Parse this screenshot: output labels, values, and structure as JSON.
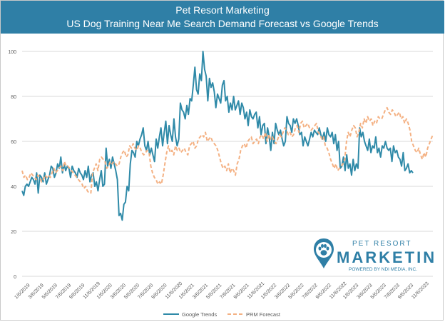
{
  "header": {
    "title": "Pet Resort Marketing",
    "subtitle": "US Dog Training Near Me Search Demand Forecast vs Google Trends"
  },
  "logo": {
    "top_text": "PET RESORT",
    "main_text": "MARKETING",
    "tagline": "POWERED BY NDI MEDIA, INC.",
    "color": "#2f7fa6"
  },
  "colors": {
    "google_trends": "#2f8aa8",
    "prm_forecast": "#f4b183",
    "header_bg": "#2f7fa6",
    "grid": "#d9d9d9"
  },
  "chart_data": {
    "type": "line",
    "title": "US Dog Training Near Me Search Demand Forecast vs Google Trends",
    "xlabel": "",
    "ylabel": "",
    "ylim": [
      0,
      100
    ],
    "yticks": [
      0,
      20,
      40,
      60,
      80,
      100
    ],
    "grid": true,
    "legend_position": "bottom",
    "x_tick_labels": [
      "1/6/2019",
      "3/6/2019",
      "5/6/2019",
      "7/6/2019",
      "9/6/2019",
      "11/6/2019",
      "1/6/2020",
      "3/6/2020",
      "5/6/2020",
      "7/6/2020",
      "9/6/2020",
      "11/6/2020",
      "1/6/2021",
      "3/6/2021",
      "5/6/2021",
      "7/6/2021",
      "9/6/2021",
      "11/6/2021",
      "1/6/2022",
      "3/6/2022",
      "5/6/2022",
      "7/6/2022",
      "9/6/2022",
      "11/6/2022",
      "1/6/2023",
      "3/6/2023",
      "5/6/2023",
      "7/6/2023",
      "9/6/2023",
      "11/6/2023"
    ],
    "series": [
      {
        "name": "Google Trends",
        "style": "solid",
        "values": [
          38,
          36,
          40,
          41,
          40,
          42,
          44,
          43,
          41,
          46,
          37,
          45,
          44,
          42,
          46,
          41,
          43,
          45,
          49,
          48,
          44,
          46,
          50,
          48,
          53,
          46,
          50,
          47,
          49,
          48,
          44,
          49,
          47,
          46,
          44,
          48,
          46,
          45,
          43,
          47,
          44,
          49,
          42,
          45,
          46,
          40,
          42,
          38,
          43,
          47,
          40,
          41,
          57,
          49,
          52,
          48,
          53,
          50,
          47,
          43,
          27,
          28,
          25,
          32,
          33,
          40,
          38,
          50,
          56,
          55,
          53,
          60,
          58,
          61,
          63,
          66,
          58,
          56,
          60,
          54,
          57,
          54,
          51,
          61,
          57,
          62,
          66,
          58,
          64,
          69,
          59,
          67,
          63,
          60,
          70,
          62,
          58,
          61,
          77,
          74,
          73,
          70,
          76,
          72,
          79,
          78,
          85,
          93,
          83,
          81,
          90,
          87,
          100,
          92,
          89,
          78,
          88,
          84,
          86,
          82,
          75,
          81,
          79,
          77,
          85,
          87,
          78,
          80,
          73,
          77,
          74,
          80,
          74,
          76,
          78,
          72,
          77,
          75,
          70,
          73,
          67,
          74,
          71,
          70,
          72,
          73,
          66,
          71,
          63,
          67,
          68,
          59,
          66,
          62,
          56,
          64,
          59,
          68,
          65,
          63,
          65,
          61,
          58,
          60,
          71,
          68,
          67,
          64,
          70,
          68,
          70,
          67,
          63,
          64,
          58,
          62,
          60,
          58,
          61,
          64,
          62,
          65,
          64,
          63,
          66,
          63,
          61,
          64,
          60,
          66,
          63,
          62,
          64,
          59,
          63,
          56,
          60,
          48,
          49,
          53,
          47,
          54,
          48,
          50,
          45,
          52,
          47,
          50,
          48,
          66,
          62,
          64,
          60,
          58,
          56,
          61,
          55,
          58,
          57,
          62,
          55,
          57,
          53,
          58,
          57,
          60,
          57,
          56,
          57,
          51,
          58,
          55,
          56,
          53,
          52,
          49,
          55,
          47,
          48,
          50,
          46,
          47,
          46
        ]
      },
      {
        "name": "PRM Forecast",
        "style": "dashed",
        "values": [
          47,
          44,
          45,
          43,
          44,
          46,
          45,
          44,
          43,
          45,
          44,
          42,
          43,
          45,
          44,
          45,
          44,
          46,
          48,
          46,
          47,
          48,
          49,
          47,
          51,
          49,
          49,
          48,
          47,
          46,
          45,
          44,
          43,
          42,
          41,
          39,
          40,
          38,
          37,
          37,
          46,
          48,
          50,
          47,
          52,
          53,
          52,
          51,
          48,
          49,
          51,
          50,
          51,
          50,
          49,
          50,
          53,
          55,
          56,
          53,
          54,
          58,
          57,
          59,
          57,
          56,
          58,
          57,
          55,
          54,
          55,
          56,
          55,
          49,
          46,
          44,
          43,
          41,
          42,
          41,
          45,
          50,
          55,
          58,
          55,
          56,
          54,
          58,
          56,
          57,
          55,
          56,
          57,
          55,
          54,
          58,
          59,
          60,
          57,
          58,
          61,
          62,
          63,
          62,
          64,
          60,
          61,
          62,
          60,
          59,
          58,
          56,
          53,
          50,
          48,
          49,
          47,
          50,
          46,
          48,
          47,
          45,
          50,
          52,
          56,
          58,
          59,
          57,
          60,
          61,
          62,
          59,
          60,
          61,
          59,
          62,
          63,
          61,
          64,
          60,
          63,
          61,
          62,
          60,
          59,
          61,
          63,
          62,
          64,
          66,
          65,
          63,
          64,
          62,
          63,
          66,
          67,
          64,
          68,
          69,
          66,
          67,
          68,
          66,
          65,
          66,
          67,
          68,
          64,
          63,
          61,
          62,
          58,
          57,
          55,
          52,
          50,
          48,
          50,
          47,
          48,
          49,
          50,
          52,
          60,
          64,
          62,
          65,
          67,
          66,
          62,
          64,
          68,
          66,
          70,
          68,
          71,
          69,
          70,
          67,
          69,
          68,
          71,
          70,
          70,
          72,
          74,
          75,
          73,
          72,
          74,
          73,
          71,
          72,
          73,
          70,
          71,
          68,
          70,
          68,
          65,
          60,
          58,
          56,
          55,
          57,
          54,
          52,
          55,
          53,
          57,
          59,
          61,
          63
        ]
      }
    ]
  }
}
